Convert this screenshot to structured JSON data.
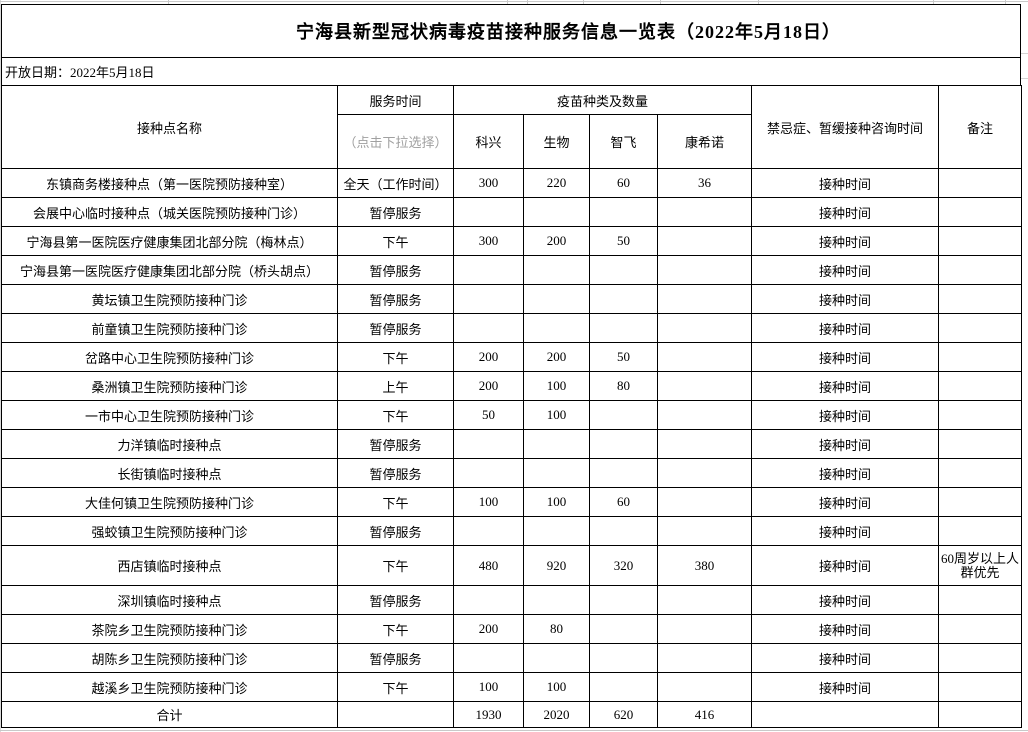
{
  "page": {
    "title": "宁海县新型冠状病毒疫苗接种服务信息一览表（2022年5月18日）",
    "open_date": "开放日期：2022年5月18日"
  },
  "colors": {
    "table_border": "#000000",
    "hint_text": "#a0a0a0",
    "faint_grid_line": "#c9c9c9",
    "background": "#ffffff"
  },
  "table": {
    "headers": {
      "site": "接种点名称",
      "service_time": "服务时间",
      "service_time_hint": "（点击下拉选择）",
      "vaccine_group": "疫苗种类及数量",
      "vaccines": [
        "科兴",
        "生物",
        "智飞",
        "康希诺"
      ],
      "consult": "禁忌症、暂缓接种咨询时间",
      "remark": "备注"
    },
    "rows": [
      {
        "site": "东镇商务楼接种点（第一医院预防接种室）",
        "service": "全天（工作时间）",
        "kexing": "300",
        "shengwu": "220",
        "zhifei": "60",
        "kangxinuo": "36",
        "consult": "接种时间",
        "remark": ""
      },
      {
        "site": "会展中心临时接种点（城关医院预防接种门诊）",
        "service": "暂停服务",
        "kexing": "",
        "shengwu": "",
        "zhifei": "",
        "kangxinuo": "",
        "consult": "接种时间",
        "remark": ""
      },
      {
        "site": "宁海县第一医院医疗健康集团北部分院（梅林点）",
        "service": "下午",
        "kexing": "300",
        "shengwu": "200",
        "zhifei": "50",
        "kangxinuo": "",
        "consult": "接种时间",
        "remark": ""
      },
      {
        "site": "宁海县第一医院医疗健康集团北部分院（桥头胡点）",
        "service": "暂停服务",
        "kexing": "",
        "shengwu": "",
        "zhifei": "",
        "kangxinuo": "",
        "consult": "接种时间",
        "remark": ""
      },
      {
        "site": "黄坛镇卫生院预防接种门诊",
        "service": "暂停服务",
        "kexing": "",
        "shengwu": "",
        "zhifei": "",
        "kangxinuo": "",
        "consult": "接种时间",
        "remark": ""
      },
      {
        "site": "前童镇卫生院预防接种门诊",
        "service": "暂停服务",
        "kexing": "",
        "shengwu": "",
        "zhifei": "",
        "kangxinuo": "",
        "consult": "接种时间",
        "remark": ""
      },
      {
        "site": "岔路中心卫生院预防接种门诊",
        "service": "下午",
        "kexing": "200",
        "shengwu": "200",
        "zhifei": "50",
        "kangxinuo": "",
        "consult": "接种时间",
        "remark": ""
      },
      {
        "site": "桑洲镇卫生院预防接种门诊",
        "service": "上午",
        "kexing": "200",
        "shengwu": "100",
        "zhifei": "80",
        "kangxinuo": "",
        "consult": "接种时间",
        "remark": ""
      },
      {
        "site": "一市中心卫生院预防接种门诊",
        "service": "下午",
        "kexing": "50",
        "shengwu": "100",
        "zhifei": "",
        "kangxinuo": "",
        "consult": "接种时间",
        "remark": ""
      },
      {
        "site": "力洋镇临时接种点",
        "service": "暂停服务",
        "kexing": "",
        "shengwu": "",
        "zhifei": "",
        "kangxinuo": "",
        "consult": "接种时间",
        "remark": ""
      },
      {
        "site": "长街镇临时接种点",
        "service": "暂停服务",
        "kexing": "",
        "shengwu": "",
        "zhifei": "",
        "kangxinuo": "",
        "consult": "接种时间",
        "remark": ""
      },
      {
        "site": "大佳何镇卫生院预防接种门诊",
        "service": "下午",
        "kexing": "100",
        "shengwu": "100",
        "zhifei": "60",
        "kangxinuo": "",
        "consult": "接种时间",
        "remark": ""
      },
      {
        "site": "强蛟镇卫生院预防接种门诊",
        "service": "暂停服务",
        "kexing": "",
        "shengwu": "",
        "zhifei": "",
        "kangxinuo": "",
        "consult": "接种时间",
        "remark": ""
      },
      {
        "site": "西店镇临时接种点",
        "service": "下午",
        "kexing": "480",
        "shengwu": "920",
        "zhifei": "320",
        "kangxinuo": "380",
        "consult": "接种时间",
        "remark": "60周岁以上人群优先"
      },
      {
        "site": "深圳镇临时接种点",
        "service": "暂停服务",
        "kexing": "",
        "shengwu": "",
        "zhifei": "",
        "kangxinuo": "",
        "consult": "接种时间",
        "remark": ""
      },
      {
        "site": "茶院乡卫生院预防接种门诊",
        "service": "下午",
        "kexing": "200",
        "shengwu": "80",
        "zhifei": "",
        "kangxinuo": "",
        "consult": "接种时间",
        "remark": ""
      },
      {
        "site": "胡陈乡卫生院预防接种门诊",
        "service": "暂停服务",
        "kexing": "",
        "shengwu": "",
        "zhifei": "",
        "kangxinuo": "",
        "consult": "接种时间",
        "remark": ""
      },
      {
        "site": "越溪乡卫生院预防接种门诊",
        "service": "下午",
        "kexing": "100",
        "shengwu": "100",
        "zhifei": "",
        "kangxinuo": "",
        "consult": "接种时间",
        "remark": ""
      }
    ],
    "total_row": {
      "site": "合计",
      "service": "",
      "kexing": "1930",
      "shengwu": "2020",
      "zhifei": "620",
      "kangxinuo": "416",
      "consult": "",
      "remark": ""
    }
  }
}
